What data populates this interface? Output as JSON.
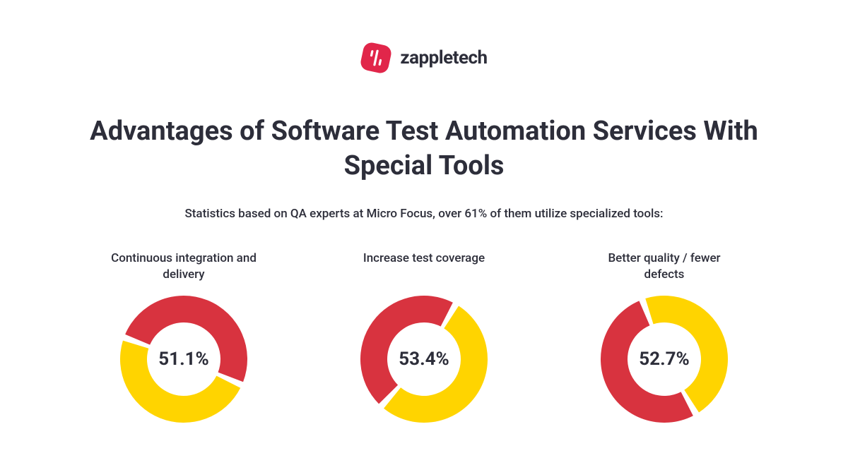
{
  "brand": {
    "name": "zappletech",
    "logo_bg": "#e1264a",
    "logo_stroke": "#ffffff"
  },
  "headline": "Advantages of Software Test Automation Services With Special Tools",
  "subhead": "Statistics based on QA experts at Micro Focus, over 61% of them utilize specialized tools:",
  "colors": {
    "text": "#2d2e3a",
    "primary": "#d8333f",
    "secondary": "#ffd400",
    "background": "#ffffff"
  },
  "donut": {
    "outer_radius": 90,
    "inner_radius": 52,
    "gap_deg": 3,
    "value_fontsize": 26,
    "label_fontsize": 17
  },
  "charts": [
    {
      "label": "Continuous integration and delivery",
      "value": 51.1,
      "display": "51.1%",
      "start_angle": -70,
      "primary_is_secondary_color": false
    },
    {
      "label": "Increase test coverage",
      "value": 53.4,
      "display": "53.4%",
      "start_angle": 30,
      "primary_is_secondary_color": true
    },
    {
      "label": "Better quality / fewer defects",
      "value": 52.7,
      "display": "52.7%",
      "start_angle": 150,
      "primary_is_secondary_color": false
    }
  ]
}
